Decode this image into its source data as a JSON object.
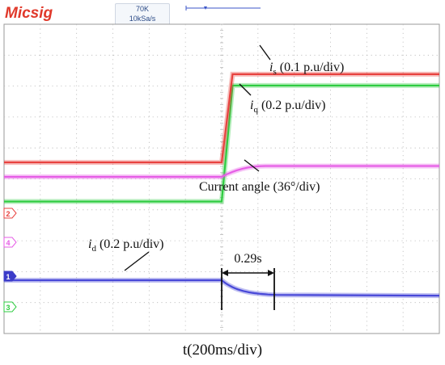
{
  "header": {
    "brand": "Micsig",
    "memory": "70K",
    "sample_rate": "10kSa/s"
  },
  "chart_data": {
    "type": "line",
    "xlabel": "t(200ms/div)",
    "x_unit": "s",
    "time_per_div": 0.2,
    "xlim": [
      -1.2,
      1.2
    ],
    "step_time": 0,
    "grid": true,
    "channel_markers": [
      "2",
      "4",
      "1",
      "3"
    ],
    "series": [
      {
        "key": "is",
        "color": "#2ecc40",
        "before_div": -0.85,
        "after_div": 2.9,
        "rise_time": 0.06
      },
      {
        "key": "iq",
        "color": "#e8423f",
        "before_div": -0.55,
        "after_div": 2.3,
        "rise_time": 0.06
      },
      {
        "key": "angle",
        "color": "#e65ce6",
        "before_div": -0.6,
        "after_div": -0.25,
        "rise_time": 0.15
      },
      {
        "key": "id",
        "color": "#4848d8",
        "before_div": 0,
        "after_div": -0.5,
        "rise_time": 0.12
      }
    ],
    "annotations": {
      "is_sym": "i",
      "is_sub": "s",
      "is_text": " (0.1 p.u/div)",
      "iq_sym": "i",
      "iq_sub": "q",
      "iq_text": " (0.2 p.u/div)",
      "angle_text": "Current angle (36°/div)",
      "id_sym": "i",
      "id_sub": "d",
      "id_text": " (0.2 p.u/div)",
      "delay_label": "0.29s",
      "delay_value": 0.29
    }
  }
}
